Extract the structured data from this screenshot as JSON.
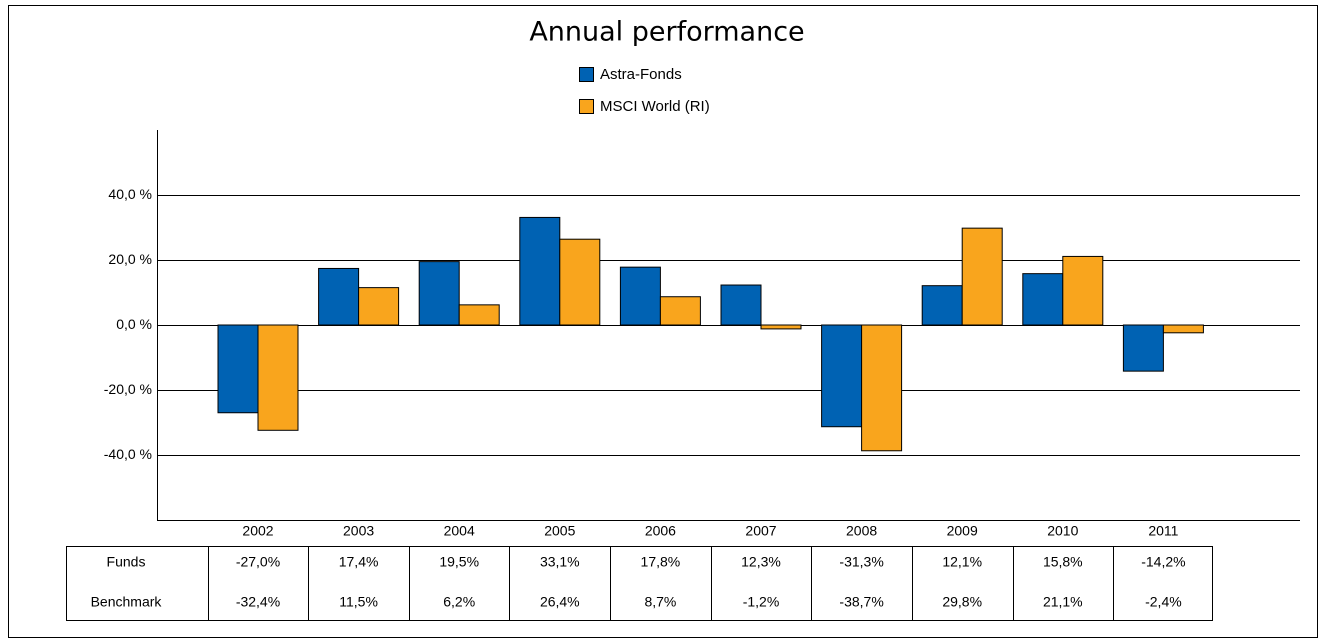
{
  "chart_data": {
    "type": "bar",
    "title": "Annual performance",
    "categories": [
      "2002",
      "2003",
      "2004",
      "2005",
      "2006",
      "2007",
      "2008",
      "2009",
      "2010",
      "2011"
    ],
    "series": [
      {
        "name": "Astra-Fonds",
        "color": "#0062b3",
        "values": [
          -27.0,
          17.4,
          19.5,
          33.1,
          17.8,
          12.3,
          -31.3,
          12.1,
          15.8,
          -14.2
        ],
        "value_labels": [
          "-27,0%",
          "17,4%",
          "19,5%",
          "33,1%",
          "17,8%",
          "12,3%",
          "-31,3%",
          "12,1%",
          "15,8%",
          "-14,2%"
        ]
      },
      {
        "name": "MSCI World (RI)",
        "color": "#f9a51d",
        "values": [
          -32.4,
          11.5,
          6.2,
          26.4,
          8.7,
          -1.2,
          -38.7,
          29.8,
          21.1,
          -2.4
        ],
        "value_labels": [
          "-32,4%",
          "11,5%",
          "6,2%",
          "26,4%",
          "8,7%",
          "-1,2%",
          "-38,7%",
          "29,8%",
          "21,1%",
          "-2,4%"
        ]
      }
    ],
    "table_row_labels": [
      "Funds",
      "Benchmark"
    ],
    "ylim": [
      -60,
      60
    ],
    "yticks": [
      {
        "value": -40,
        "label": "-40,0 %"
      },
      {
        "value": -20,
        "label": "-20,0 %"
      },
      {
        "value": 0,
        "label": "0,0 %"
      },
      {
        "value": 20,
        "label": "20,0 %"
      },
      {
        "value": 40,
        "label": "40,0 %"
      }
    ],
    "grid": true
  }
}
